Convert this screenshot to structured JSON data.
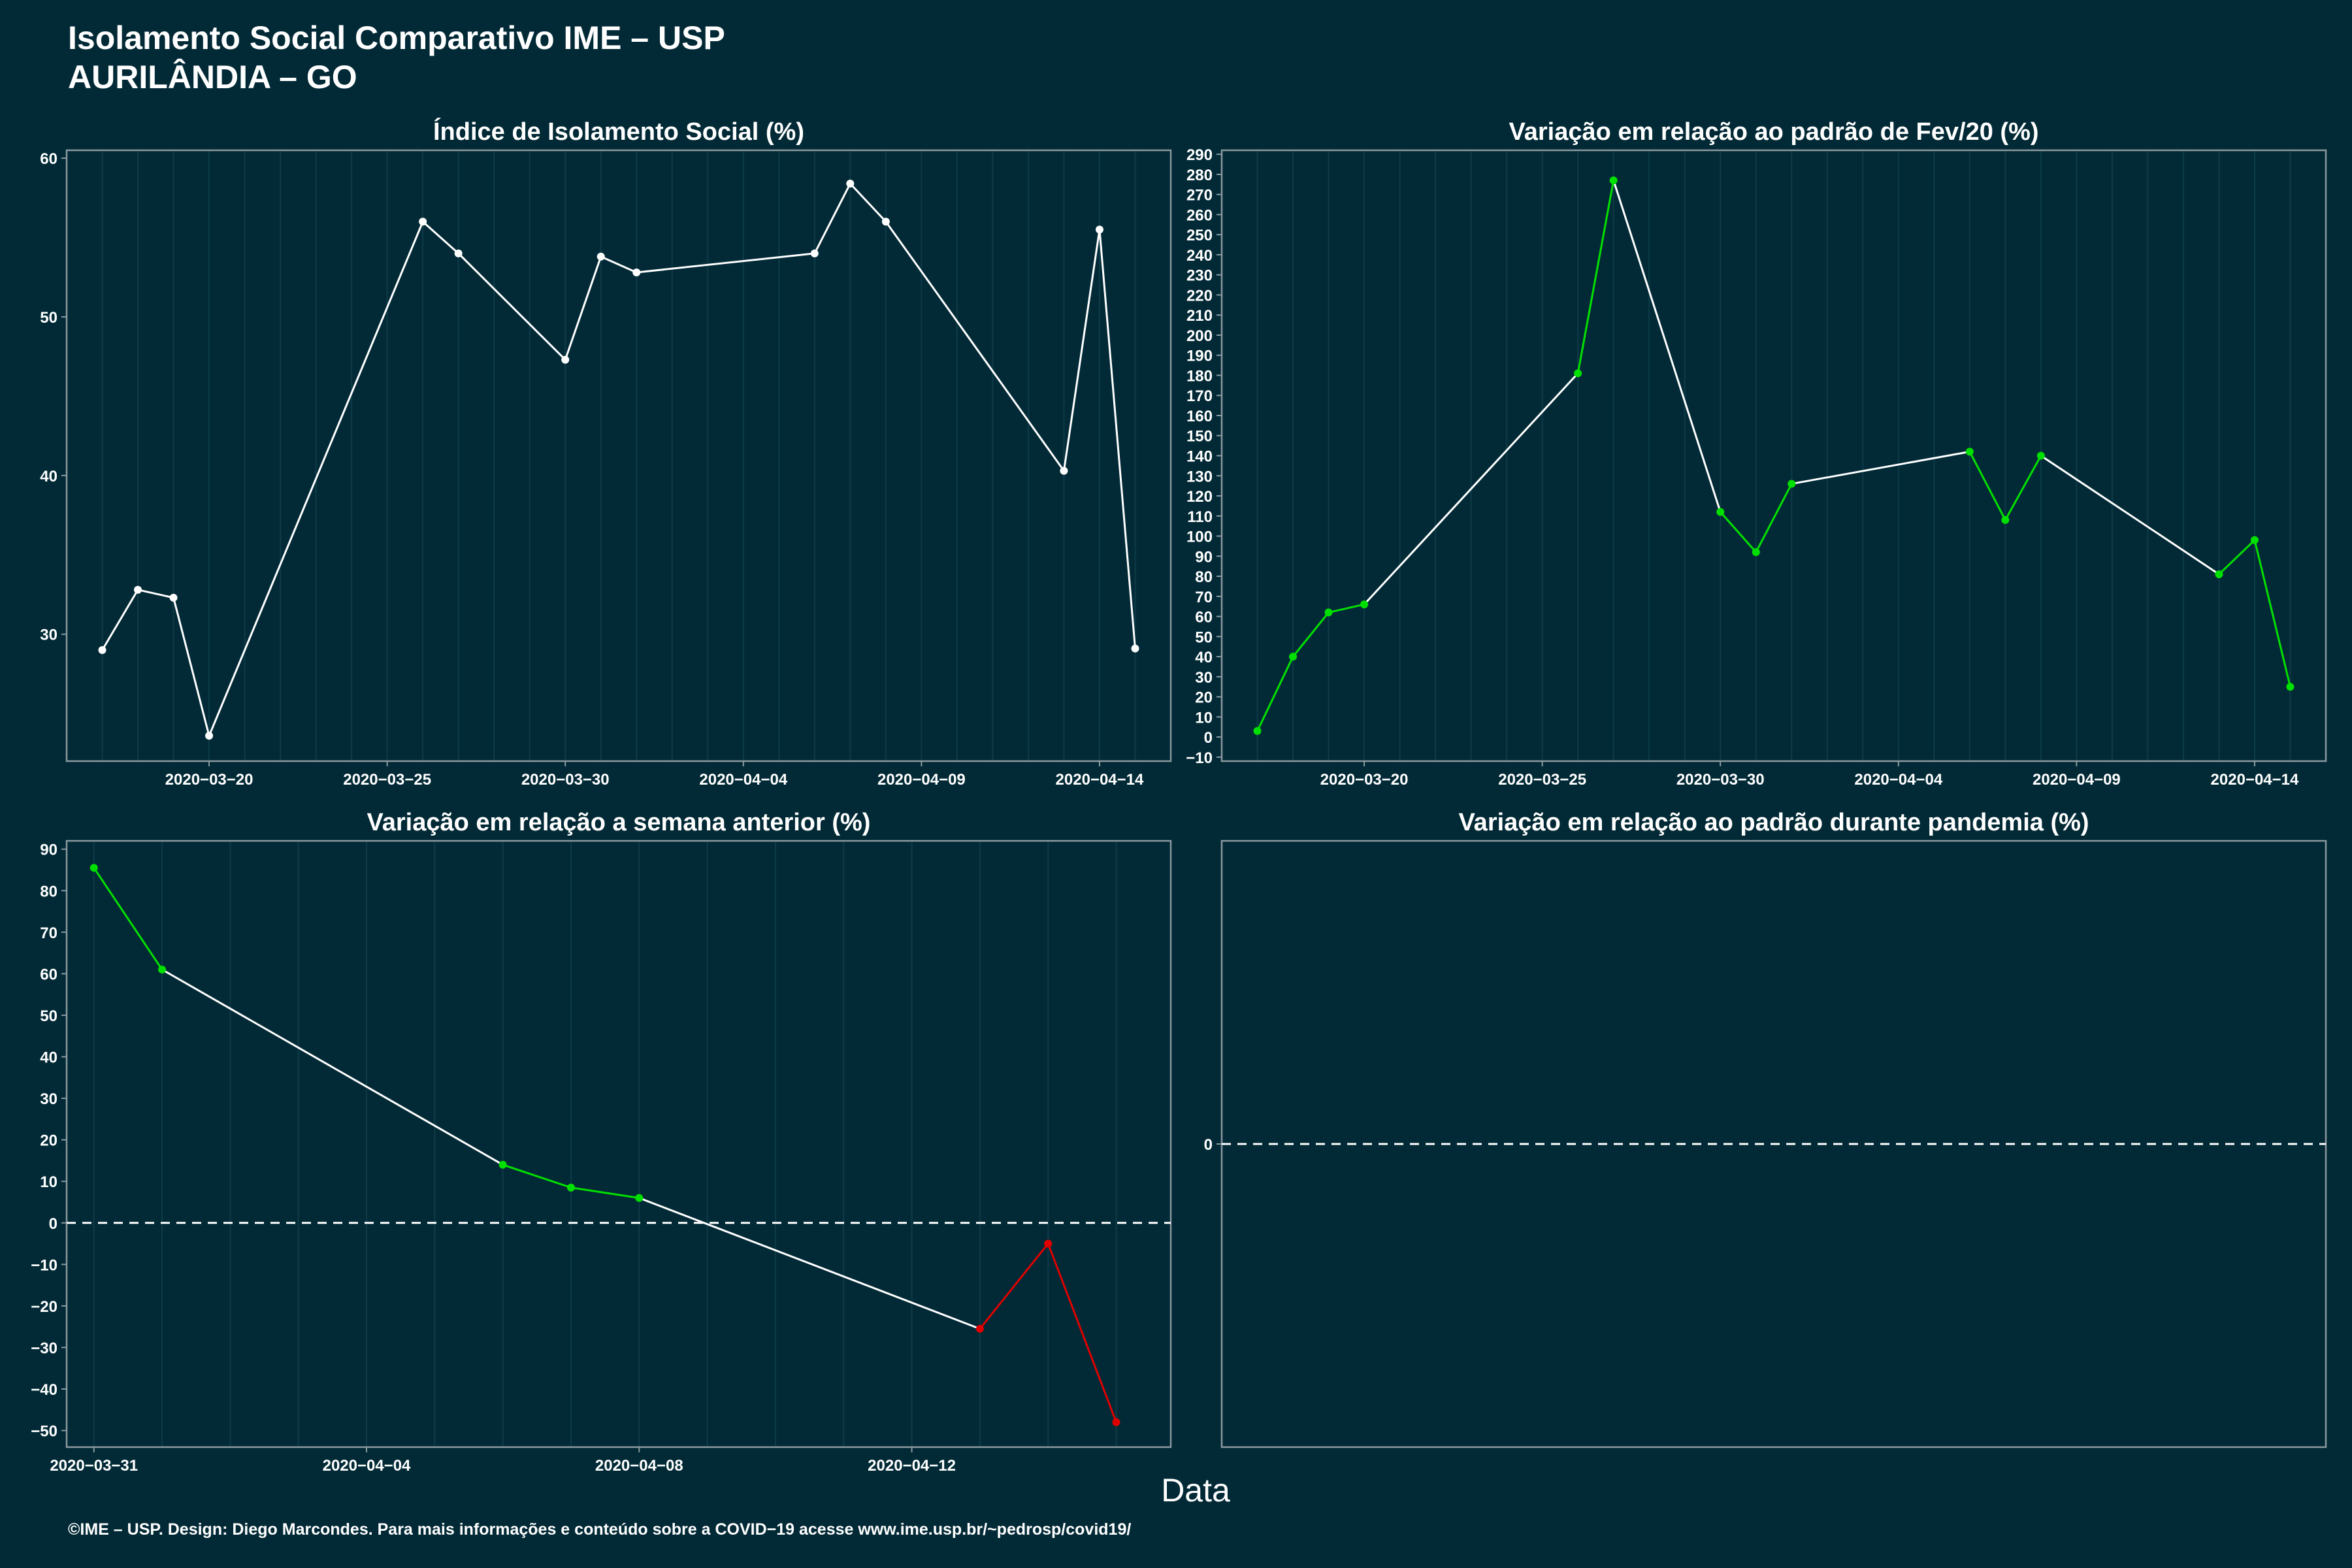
{
  "page": {
    "title_line1": "Isolamento Social Comparativo IME – USP",
    "title_line2": "AURILÂNDIA – GO",
    "x_axis_label": "Data",
    "footer": "©IME – USP. Design: Diego Marcondes. Para mais informações e conteúdo sobre a COVID−19 acesse www.ime.usp.br/~pedrosp/covid19/"
  },
  "colors": {
    "background": "#022a36",
    "panel_border": "#8c9aa0",
    "gridline": "#0d3b47",
    "line": "#ffffff",
    "positive": "#00e000",
    "negative": "#e00000"
  },
  "chart_data": [
    {
      "type": "line",
      "title": "Índice de Isolamento Social (%)",
      "x": [
        "2020-03-17",
        "2020-03-18",
        "2020-03-19",
        "2020-03-20",
        "2020-03-26",
        "2020-03-27",
        "2020-03-30",
        "2020-03-31",
        "2020-04-01",
        "2020-04-06",
        "2020-04-07",
        "2020-04-08",
        "2020-04-13",
        "2020-04-14",
        "2020-04-15"
      ],
      "series": [
        {
          "values": [
            29.0,
            32.8,
            32.3,
            23.6,
            56.0,
            54.0,
            47.3,
            53.8,
            52.8,
            54.0,
            58.4,
            56.0,
            40.3,
            55.5,
            29.1
          ]
        }
      ],
      "xlim": [
        "2020-03-16",
        "2020-04-16"
      ],
      "ylim": [
        22,
        60.5
      ],
      "xticks": [
        "2020-03-20",
        "2020-03-25",
        "2020-03-30",
        "2020-04-04",
        "2020-04-09",
        "2020-04-14"
      ],
      "yticks": [
        30,
        40,
        50,
        60
      ],
      "point_color_mode": "white",
      "grid": true
    },
    {
      "type": "line",
      "title": "Variação em relação ao padrão de Fev/20 (%)",
      "x": [
        "2020-03-17",
        "2020-03-18",
        "2020-03-19",
        "2020-03-20",
        "2020-03-26",
        "2020-03-27",
        "2020-03-30",
        "2020-03-31",
        "2020-04-01",
        "2020-04-06",
        "2020-04-07",
        "2020-04-08",
        "2020-04-13",
        "2020-04-14",
        "2020-04-15"
      ],
      "series": [
        {
          "values": [
            3,
            40,
            62,
            66,
            181,
            277,
            112,
            92,
            126,
            142,
            108,
            140,
            81,
            98,
            25
          ]
        }
      ],
      "xlim": [
        "2020-03-16",
        "2020-04-16"
      ],
      "ylim": [
        -12,
        292
      ],
      "xticks": [
        "2020-03-20",
        "2020-03-25",
        "2020-03-30",
        "2020-04-04",
        "2020-04-09",
        "2020-04-14"
      ],
      "yticks": [
        -10,
        0,
        10,
        20,
        30,
        40,
        50,
        60,
        70,
        80,
        90,
        100,
        110,
        120,
        130,
        140,
        150,
        160,
        170,
        180,
        190,
        200,
        210,
        220,
        230,
        240,
        250,
        260,
        270,
        280,
        290
      ],
      "point_color_mode": "increase",
      "grid": true
    },
    {
      "type": "line",
      "title": "Variação em relação a semana anterior (%)",
      "x": [
        "2020-03-31",
        "2020-04-01",
        "2020-04-06",
        "2020-04-07",
        "2020-04-08",
        "2020-04-13",
        "2020-04-14",
        "2020-04-15"
      ],
      "series": [
        {
          "values": [
            85.5,
            61,
            14,
            8.5,
            6,
            -25.5,
            -5,
            -48
          ]
        }
      ],
      "xlim": [
        "2020-03-30.6",
        "2020-04-15.8"
      ],
      "ylim": [
        -54,
        92
      ],
      "xticks": [
        "2020-03-31",
        "2020-04-04",
        "2020-04-08",
        "2020-04-12"
      ],
      "yticks": [
        -50,
        -40,
        -30,
        -20,
        -10,
        0,
        10,
        20,
        30,
        40,
        50,
        60,
        70,
        80,
        90
      ],
      "point_color_mode": "sign",
      "zero_line": true,
      "grid": true
    },
    {
      "type": "line",
      "title": "Variação em relação ao padrão durante pandemia (%)",
      "x": [],
      "series": [],
      "ylim": [
        -1,
        1
      ],
      "yticks": [
        0
      ],
      "zero_line": true,
      "grid": false
    }
  ]
}
